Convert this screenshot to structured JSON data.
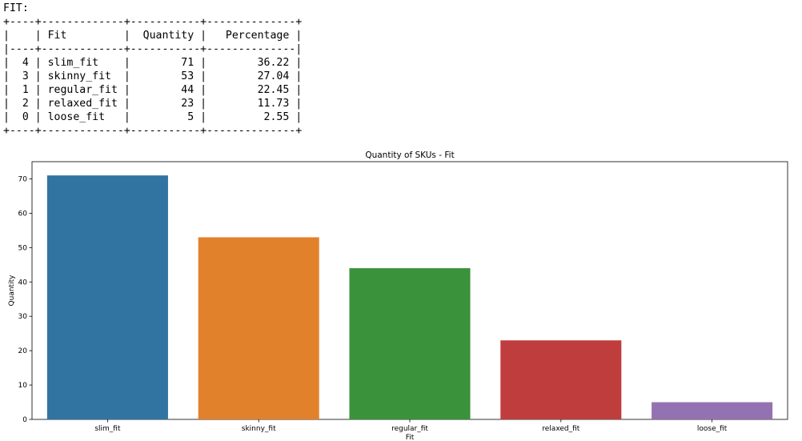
{
  "output": {
    "heading": "FIT:",
    "table": {
      "columns": [
        "",
        "Fit",
        "Quantity",
        "Percentage"
      ],
      "rows": [
        [
          "4",
          "slim_fit",
          "71",
          "36.22"
        ],
        [
          "3",
          "skinny_fit",
          "53",
          "27.04"
        ],
        [
          "1",
          "regular_fit",
          "44",
          "22.45"
        ],
        [
          "2",
          "relaxed_fit",
          "23",
          "11.73"
        ],
        [
          "0",
          "loose_fit",
          "5",
          "2.55"
        ]
      ]
    }
  },
  "chart_data": {
    "type": "bar",
    "title": "Quantity of SKUs - Fit",
    "xlabel": "Fit",
    "ylabel": "Quantity",
    "categories": [
      "slim_fit",
      "skinny_fit",
      "regular_fit",
      "relaxed_fit",
      "loose_fit"
    ],
    "values": [
      71,
      53,
      44,
      23,
      5
    ],
    "colors": [
      "#3274a1",
      "#e1812c",
      "#3a923a",
      "#c03d3e",
      "#9372b2"
    ],
    "ylim": [
      0,
      75
    ],
    "yticks": [
      0,
      10,
      20,
      30,
      40,
      50,
      60,
      70
    ],
    "grid": false
  }
}
